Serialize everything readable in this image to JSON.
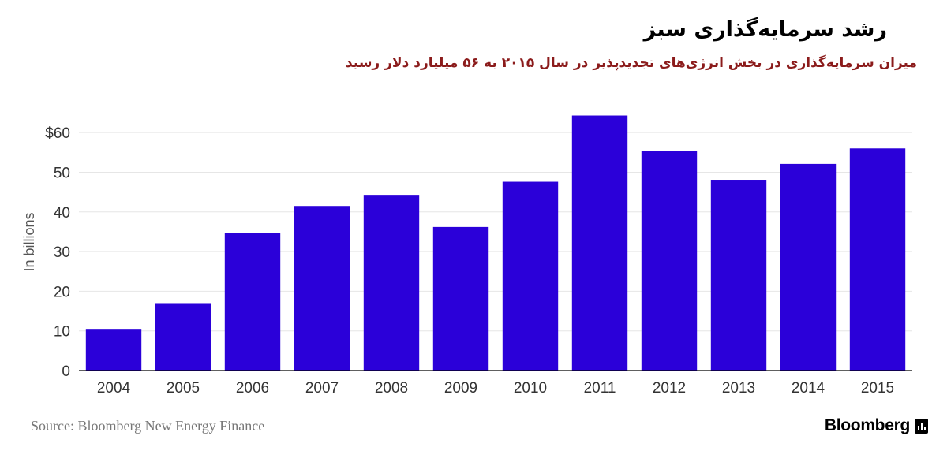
{
  "title": "رشد سرمایه‌گذاری سبز",
  "subtitle": "میزان سرمایه‌گذاری در بخش انرژی‌های تجدیدپذیر در سال ۲۰۱۵ به ۵۶ میلیارد دلار رسید",
  "source": "Source: Bloomberg New Energy Finance",
  "brand": "Bloomberg",
  "colors": {
    "bar": "#2b00d9",
    "subtitle": "#8b1b1b",
    "grid": "#e6e6e6"
  },
  "chart_data": {
    "type": "bar",
    "categories": [
      "2004",
      "2005",
      "2006",
      "2007",
      "2008",
      "2009",
      "2010",
      "2011",
      "2012",
      "2013",
      "2014",
      "2015"
    ],
    "values": [
      10.5,
      17,
      34.7,
      41.5,
      44.3,
      36.2,
      47.6,
      64.3,
      55.4,
      48.1,
      52.1,
      56
    ],
    "ylabel": "In billions",
    "ylim": [
      0,
      65
    ],
    "yticks": [
      0,
      10,
      20,
      30,
      40,
      50,
      60
    ],
    "ytick_labels": [
      "0",
      "10",
      "20",
      "30",
      "40",
      "50",
      "$60"
    ],
    "grid": true
  }
}
